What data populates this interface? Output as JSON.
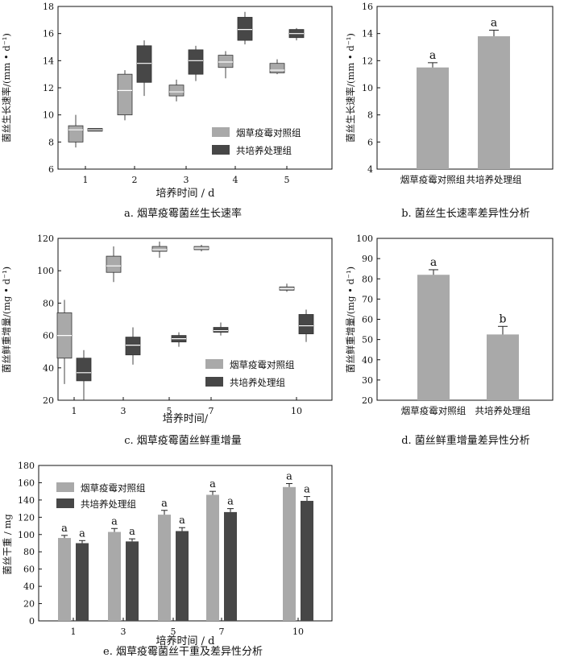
{
  "colors": {
    "light": "#a9a9a9",
    "dark": "#474747",
    "axis": "#111111"
  },
  "chart_data": [
    {
      "id": "a",
      "type": "box",
      "caption": "a. 烟草疫霉菌丝生长速率",
      "xlabel": "培养时间 / d",
      "ylabel": "菌丝生长速率/(mm • d⁻¹)",
      "categories": [
        "1",
        "2",
        "3",
        "4",
        "5"
      ],
      "ylim": [
        6,
        18
      ],
      "yticks": [
        6,
        8,
        10,
        12,
        14,
        16,
        18
      ],
      "legend_position": "lower-right",
      "series": [
        {
          "name": "烟草疫霉对照组",
          "color": "light",
          "boxes": [
            {
              "min": 7.6,
              "q1": 8.0,
              "median": 8.9,
              "q3": 9.2,
              "max": 10.0
            },
            {
              "min": 9.6,
              "q1": 10.0,
              "median": 11.8,
              "q3": 13.0,
              "max": 13.3
            },
            {
              "min": 11.0,
              "q1": 11.4,
              "median": 11.7,
              "q3": 12.2,
              "max": 12.6
            },
            {
              "min": 12.7,
              "q1": 13.5,
              "median": 13.9,
              "q3": 14.4,
              "max": 14.7
            },
            {
              "min": 13.0,
              "q1": 13.1,
              "median": 13.3,
              "q3": 13.8,
              "max": 14.1
            }
          ]
        },
        {
          "name": "共培养处理组",
          "color": "dark",
          "boxes": [
            {
              "min": 8.8,
              "q1": 8.8,
              "median": 8.9,
              "q3": 9.0,
              "max": 9.0
            },
            {
              "min": 11.4,
              "q1": 12.4,
              "median": 13.8,
              "q3": 15.1,
              "max": 15.5
            },
            {
              "min": 12.5,
              "q1": 13.0,
              "median": 14.0,
              "q3": 14.8,
              "max": 15.1
            },
            {
              "min": 15.2,
              "q1": 15.5,
              "median": 16.3,
              "q3": 17.2,
              "max": 17.6
            },
            {
              "min": 15.5,
              "q1": 15.7,
              "median": 16.0,
              "q3": 16.3,
              "max": 16.4
            }
          ]
        }
      ]
    },
    {
      "id": "b",
      "type": "bar",
      "caption": "b. 菌丝生长速率差异性分析",
      "xlabel": "",
      "ylabel": "菌丝生长速率/(mm • d⁻¹)",
      "categories": [
        "烟草疫霉对照组",
        "共培养处理组"
      ],
      "values": [
        11.5,
        13.8
      ],
      "errors": [
        0.35,
        0.45
      ],
      "letters": [
        "a",
        "a"
      ],
      "ylim": [
        4,
        16
      ],
      "yticks": [
        4,
        6,
        8,
        10,
        12,
        14,
        16
      ]
    },
    {
      "id": "c",
      "type": "box",
      "caption": "c. 烟草疫霉菌丝鲜重增量",
      "xlabel": "培养时间/",
      "ylabel": "菌丝鲜重增量/(mg • d⁻¹)",
      "categories": [
        "1",
        "3",
        "5",
        "7",
        "10"
      ],
      "ylim": [
        20,
        120
      ],
      "yticks": [
        20,
        40,
        60,
        80,
        100,
        120
      ],
      "legend_position": "lower-right",
      "series": [
        {
          "name": "烟草疫霉对照组",
          "color": "light",
          "boxes": [
            {
              "min": 30,
              "q1": 46,
              "median": 60,
              "q3": 74,
              "max": 82
            },
            {
              "min": 93,
              "q1": 99,
              "median": 103,
              "q3": 109,
              "max": 115
            },
            {
              "min": 108,
              "q1": 112,
              "median": 113,
              "q3": 115,
              "max": 118
            },
            {
              "min": 112,
              "q1": 113,
              "median": 114,
              "q3": 115,
              "max": 116
            },
            {
              "min": 87,
              "q1": 88,
              "median": 89,
              "q3": 90,
              "max": 92
            }
          ]
        },
        {
          "name": "共培养处理组",
          "color": "dark",
          "boxes": [
            {
              "min": 20,
              "q1": 32,
              "median": 37,
              "q3": 46,
              "max": 51
            },
            {
              "min": 42,
              "q1": 48,
              "median": 54,
              "q3": 59,
              "max": 65
            },
            {
              "min": 53,
              "q1": 56,
              "median": 58,
              "q3": 60,
              "max": 62
            },
            {
              "min": 60,
              "q1": 62,
              "median": 63,
              "q3": 65,
              "max": 68
            },
            {
              "min": 56,
              "q1": 61,
              "median": 66,
              "q3": 73,
              "max": 76
            }
          ]
        }
      ]
    },
    {
      "id": "d",
      "type": "bar",
      "caption": "d. 菌丝鲜重增量差异性分析",
      "xlabel": "",
      "ylabel": "菌丝鲜重增量/(mg • d⁻¹)",
      "categories": [
        "烟草疫霉对照组",
        "共培养处理组"
      ],
      "values": [
        82,
        52.5
      ],
      "errors": [
        2.5,
        4
      ],
      "letters": [
        "a",
        "b"
      ],
      "ylim": [
        20,
        100
      ],
      "yticks": [
        20,
        30,
        40,
        50,
        60,
        70,
        80,
        90,
        100
      ]
    },
    {
      "id": "e",
      "type": "bar",
      "caption": "e. 烟草疫霉菌丝干重及差异性分析",
      "xlabel": "培养时间 / d",
      "ylabel": "菌丝干重 / mg",
      "categories": [
        "1",
        "3",
        "5",
        "7",
        "10"
      ],
      "ylim": [
        0,
        180
      ],
      "yticks": [
        0,
        20,
        40,
        60,
        80,
        100,
        120,
        140,
        160,
        180
      ],
      "legend_position": "top-left",
      "series": [
        {
          "name": "烟草疫霉对照组",
          "color": "light",
          "values": [
            96,
            103,
            123,
            146,
            155
          ],
          "errors": [
            3,
            4,
            5,
            4,
            4
          ],
          "letters": [
            "a",
            "a",
            "a",
            "a",
            "a"
          ]
        },
        {
          "name": "共培养处理组",
          "color": "dark",
          "values": [
            90,
            92,
            104,
            126,
            139
          ],
          "errors": [
            3,
            3,
            4,
            4,
            5
          ],
          "letters": [
            "a",
            "a",
            "a",
            "a",
            "a"
          ]
        }
      ]
    }
  ]
}
